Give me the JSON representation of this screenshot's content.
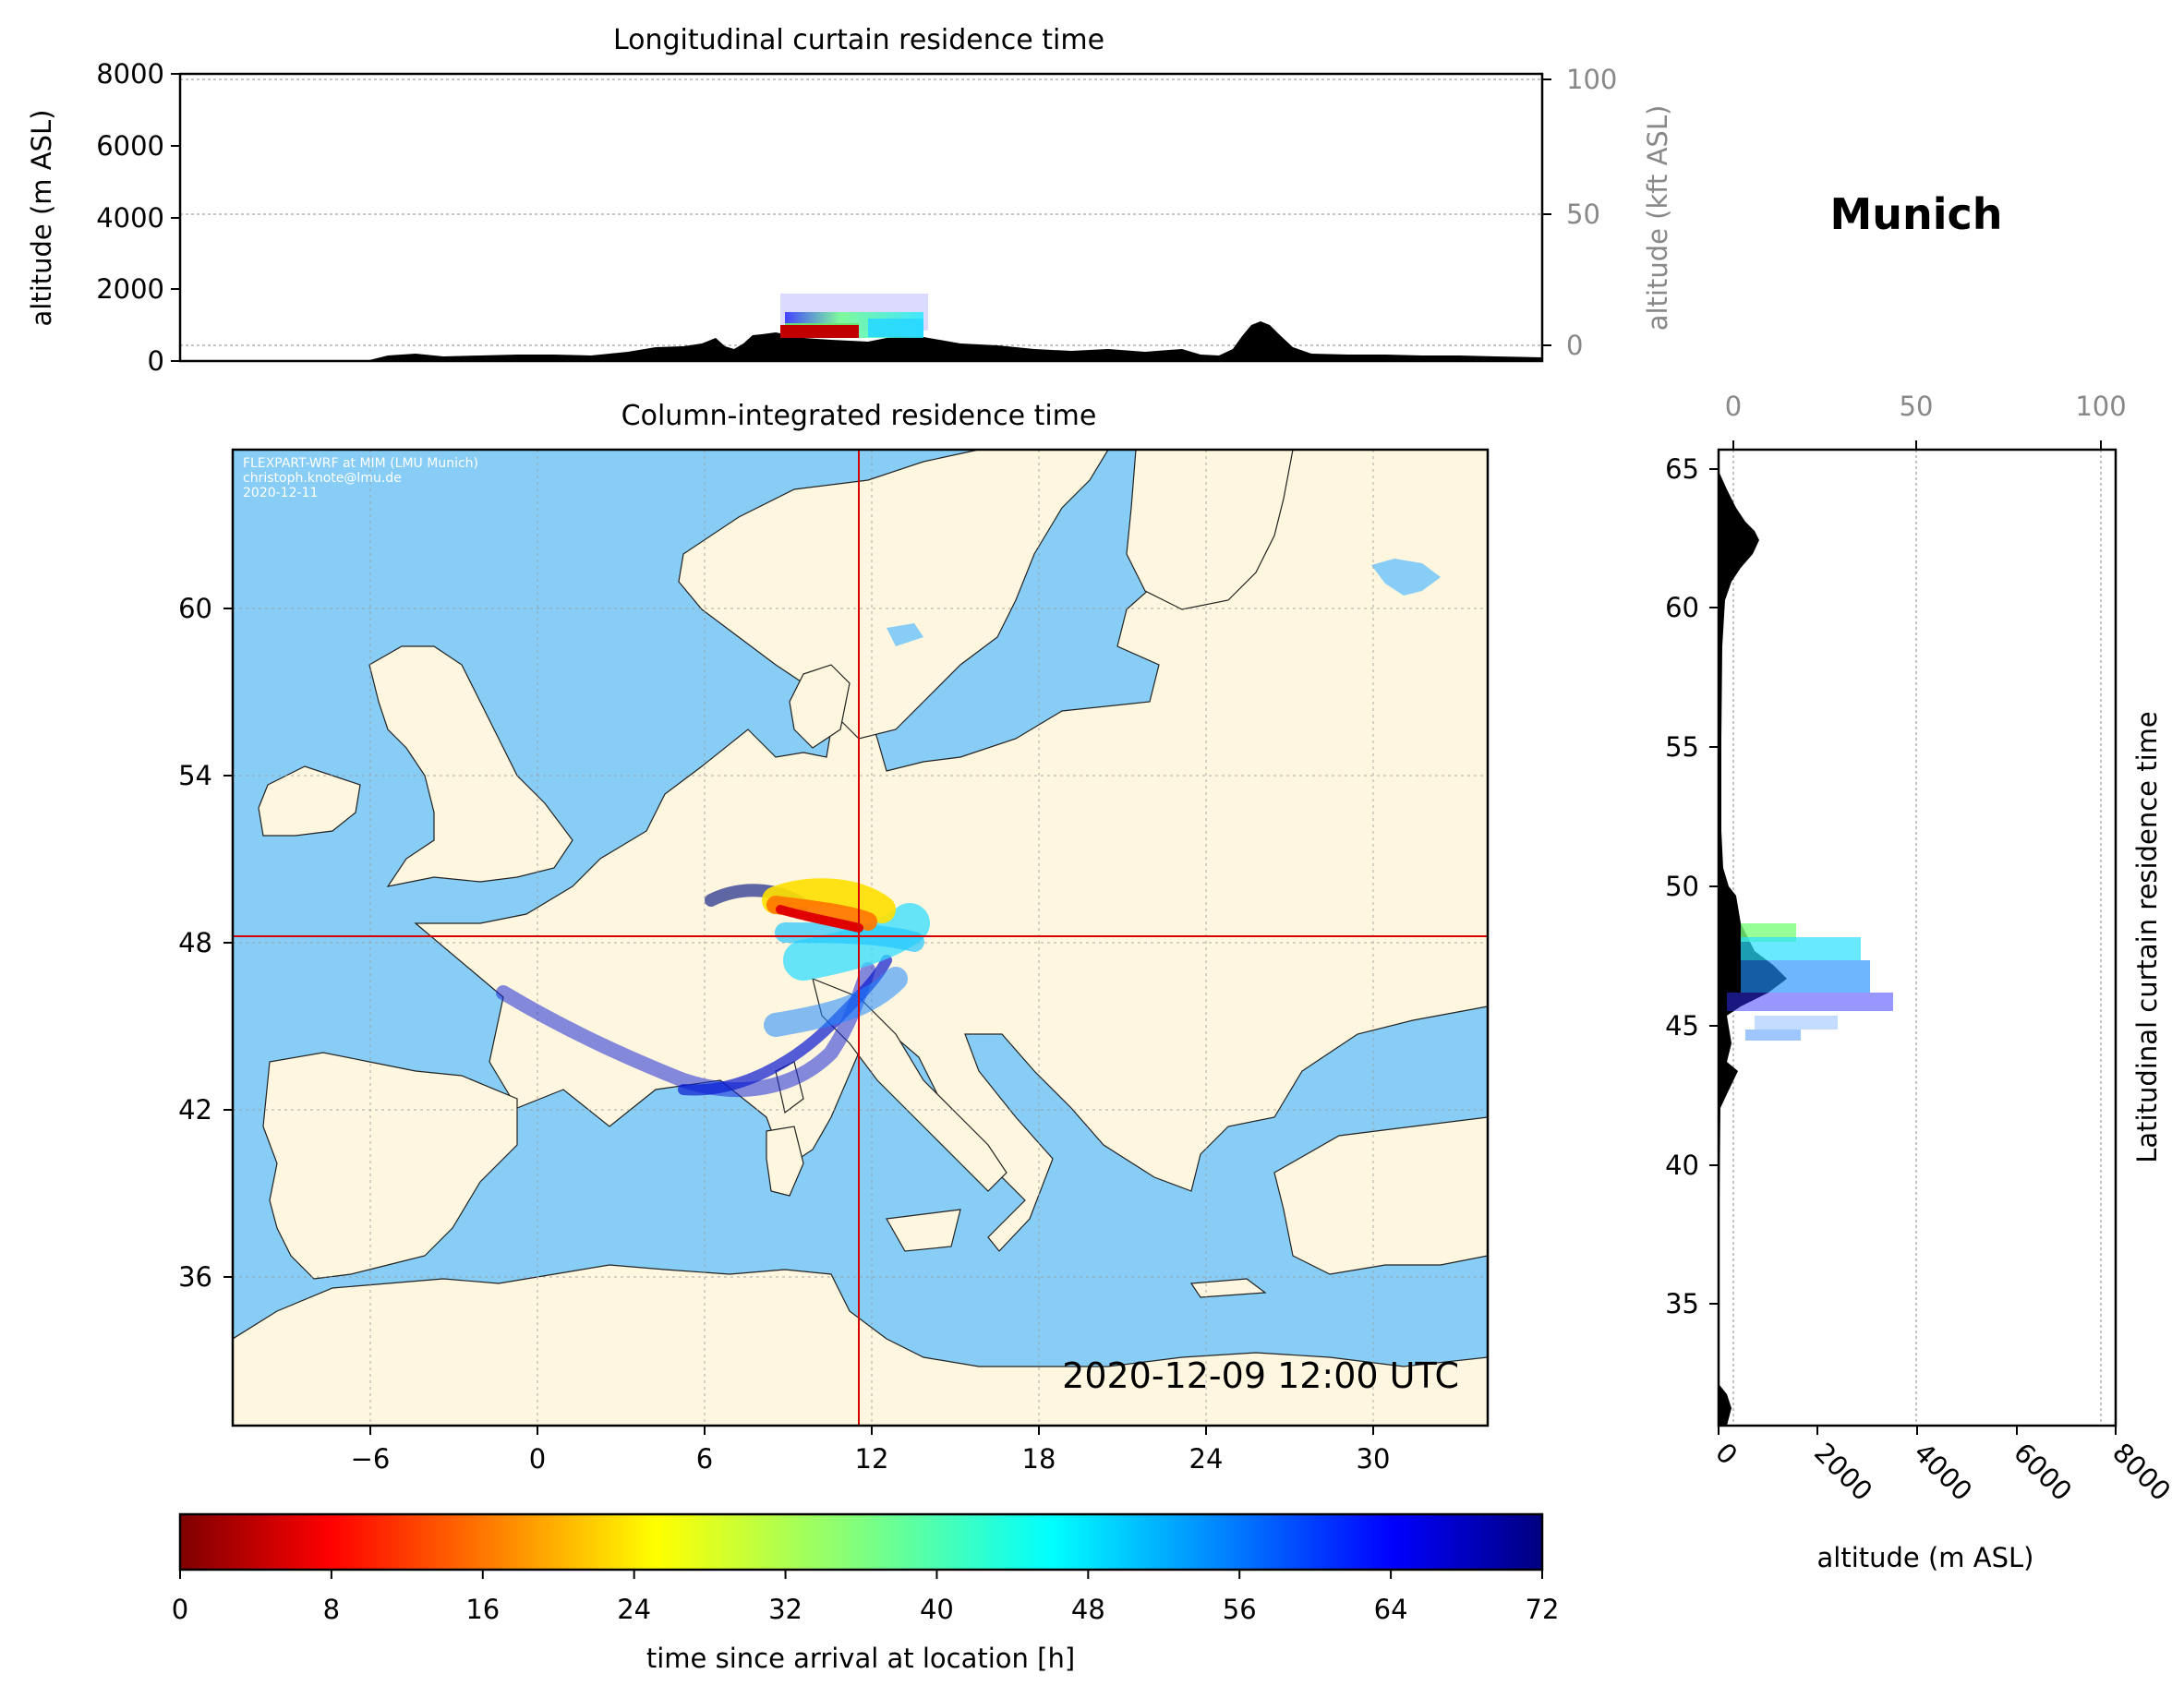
{
  "station": "Munich",
  "top_panel": {
    "title": "Longitudinal curtain residence time",
    "ylabel_left": "altitude (m ASL)",
    "ylabel_right": "altitude (kft ASL)",
    "ticks_left": [
      "0",
      "2000",
      "4000",
      "6000",
      "8000"
    ],
    "ticks_right": [
      "0",
      "50",
      "100"
    ]
  },
  "map_panel": {
    "title": "Column-integrated residence time",
    "credit": [
      "FLEXPART-WRF at MIM (LMU Munich)",
      "christoph.knote@lmu.de",
      "2020-12-11"
    ],
    "timestamp": "2020-12-09 12:00 UTC",
    "lon_ticks": [
      "−6",
      "0",
      "6",
      "12",
      "18",
      "24",
      "30"
    ],
    "lat_ticks": [
      "36",
      "42",
      "48",
      "54",
      "60"
    ],
    "colors": {
      "ocean": "#87cdf6",
      "land": "#fef6de",
      "crosshair": "#d40000"
    }
  },
  "right_panel": {
    "ylabel": "Latitudinal curtain residence time",
    "xlabel": "altitude (m ASL)",
    "lat_ticks": [
      "35",
      "40",
      "45",
      "50",
      "55",
      "60",
      "65"
    ],
    "alt_ticks": [
      "0",
      "2000",
      "4000",
      "6000",
      "8000"
    ],
    "kft_ticks": [
      "0",
      "50",
      "100"
    ]
  },
  "colorbar": {
    "label": "time since arrival at location [h]",
    "ticks": [
      "0",
      "8",
      "16",
      "24",
      "32",
      "40",
      "48",
      "56",
      "64",
      "72"
    ],
    "colormap": "jet_r"
  }
}
